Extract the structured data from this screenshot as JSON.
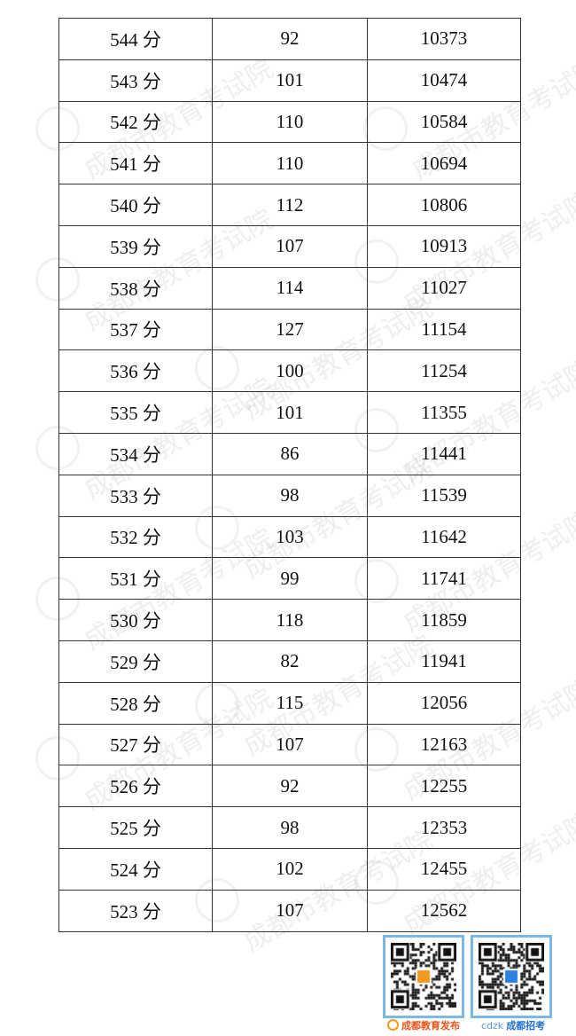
{
  "table": {
    "rows": [
      [
        "544 分",
        "92",
        "10373"
      ],
      [
        "543 分",
        "101",
        "10474"
      ],
      [
        "542 分",
        "110",
        "10584"
      ],
      [
        "541 分",
        "110",
        "10694"
      ],
      [
        "540 分",
        "112",
        "10806"
      ],
      [
        "539 分",
        "107",
        "10913"
      ],
      [
        "538 分",
        "114",
        "11027"
      ],
      [
        "537 分",
        "127",
        "11154"
      ],
      [
        "536 分",
        "100",
        "11254"
      ],
      [
        "535 分",
        "101",
        "11355"
      ],
      [
        "534 分",
        "86",
        "11441"
      ],
      [
        "533 分",
        "98",
        "11539"
      ],
      [
        "532 分",
        "103",
        "11642"
      ],
      [
        "531 分",
        "99",
        "11741"
      ],
      [
        "530 分",
        "118",
        "11859"
      ],
      [
        "529 分",
        "82",
        "11941"
      ],
      [
        "528 分",
        "115",
        "12056"
      ],
      [
        "527 分",
        "107",
        "12163"
      ],
      [
        "526 分",
        "92",
        "12255"
      ],
      [
        "525 分",
        "98",
        "12353"
      ],
      [
        "524 分",
        "102",
        "12455"
      ],
      [
        "523 分",
        "107",
        "12562"
      ]
    ]
  },
  "watermark": "成都市教育考试院",
  "footer": {
    "qr1_caption": "成都教育发布",
    "qr2_caption": "成都招考",
    "qr2_logo": "cdzk",
    "caption1_color": "#e8541c",
    "caption2_color": "#1f6fd0"
  }
}
